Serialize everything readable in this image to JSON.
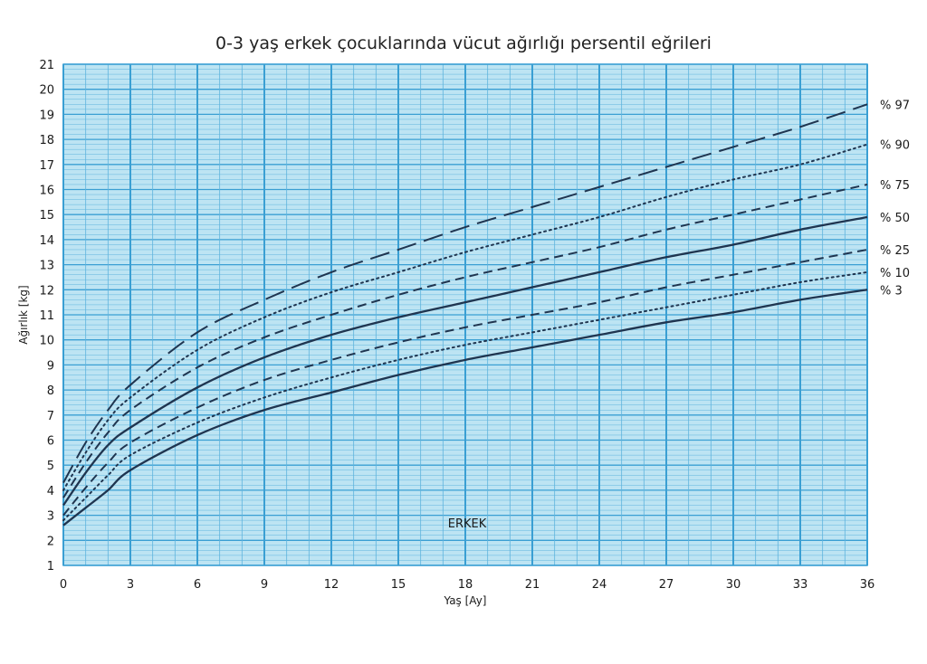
{
  "chart_data": {
    "type": "line",
    "title": "0-3 yaş erkek çocuklarında vücut ağırlığı persentil eğrileri",
    "xlabel": "Yaş [Ay]",
    "ylabel": "Ağırlık [kg]",
    "annotation": "ERKEK",
    "xlim": [
      0,
      36
    ],
    "ylim": [
      1,
      21
    ],
    "x_ticks": [
      0,
      3,
      6,
      9,
      12,
      15,
      18,
      21,
      24,
      27,
      30,
      33,
      36
    ],
    "y_ticks": [
      1,
      2,
      3,
      4,
      5,
      6,
      7,
      8,
      9,
      10,
      11,
      12,
      13,
      14,
      15,
      16,
      17,
      18,
      19,
      20,
      21
    ],
    "grid": true,
    "colors": {
      "grid_bg": "#bde4f3",
      "grid_minor": "#5fb4dd",
      "grid_major": "#3a9fd3",
      "line": "#1f3550"
    },
    "x": [
      0,
      1,
      2,
      3,
      6,
      9,
      12,
      15,
      18,
      21,
      24,
      27,
      30,
      33,
      36
    ],
    "series": [
      {
        "name": "% 97",
        "style": "longdash",
        "values": [
          4.3,
          5.9,
          7.2,
          8.2,
          10.3,
          11.6,
          12.7,
          13.6,
          14.5,
          15.3,
          16.1,
          16.9,
          17.7,
          18.5,
          19.4
        ]
      },
      {
        "name": "% 90",
        "style": "dotted",
        "values": [
          4.0,
          5.5,
          6.8,
          7.7,
          9.6,
          10.9,
          11.9,
          12.7,
          13.5,
          14.2,
          14.9,
          15.7,
          16.4,
          17.0,
          17.8
        ]
      },
      {
        "name": "% 75",
        "style": "dashed",
        "values": [
          3.7,
          5.1,
          6.3,
          7.2,
          8.9,
          10.1,
          11.0,
          11.8,
          12.5,
          13.1,
          13.7,
          14.4,
          15.0,
          15.6,
          16.2
        ]
      },
      {
        "name": "% 50",
        "style": "solid",
        "values": [
          3.4,
          4.7,
          5.8,
          6.5,
          8.1,
          9.3,
          10.2,
          10.9,
          11.5,
          12.1,
          12.7,
          13.3,
          13.8,
          14.4,
          14.9
        ]
      },
      {
        "name": "% 25",
        "style": "dashed",
        "values": [
          3.0,
          4.1,
          5.1,
          5.9,
          7.3,
          8.4,
          9.2,
          9.9,
          10.5,
          11.0,
          11.5,
          12.1,
          12.6,
          13.1,
          13.6
        ]
      },
      {
        "name": "% 10",
        "style": "dotted",
        "values": [
          2.8,
          3.7,
          4.6,
          5.4,
          6.7,
          7.7,
          8.5,
          9.2,
          9.8,
          10.3,
          10.8,
          11.3,
          11.8,
          12.3,
          12.7
        ]
      },
      {
        "name": "% 3",
        "style": "solid",
        "values": [
          2.6,
          3.3,
          4.0,
          4.8,
          6.2,
          7.2,
          7.9,
          8.6,
          9.2,
          9.7,
          10.2,
          10.7,
          11.1,
          11.6,
          12.0
        ]
      }
    ]
  }
}
